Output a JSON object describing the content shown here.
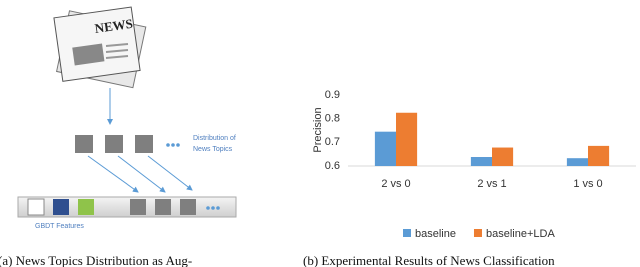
{
  "diagram": {
    "icon_text": "NEWS",
    "topics_label": [
      "Distribution of",
      "News Topics"
    ],
    "features_label": "GBDT Features"
  },
  "captions": [
    "(a) News Topics Distribution as Aug-",
    "(b) Experimental Results of News Classification"
  ],
  "chart_data": {
    "type": "bar",
    "ylabel": "Precision",
    "categories": [
      "2 vs 0",
      "2 vs 1",
      "1 vs 0"
    ],
    "series": [
      {
        "name": "baseline",
        "color": "#5b9bd5",
        "values": [
          0.745,
          0.638,
          0.633
        ]
      },
      {
        "name": "baseline+LDA",
        "color": "#ed7d31",
        "values": [
          0.825,
          0.678,
          0.685
        ]
      }
    ],
    "ylim": [
      0.6,
      0.9
    ],
    "yticks": [
      0.6,
      0.7,
      0.8,
      0.9
    ],
    "grid": false,
    "legend": "bottom"
  }
}
